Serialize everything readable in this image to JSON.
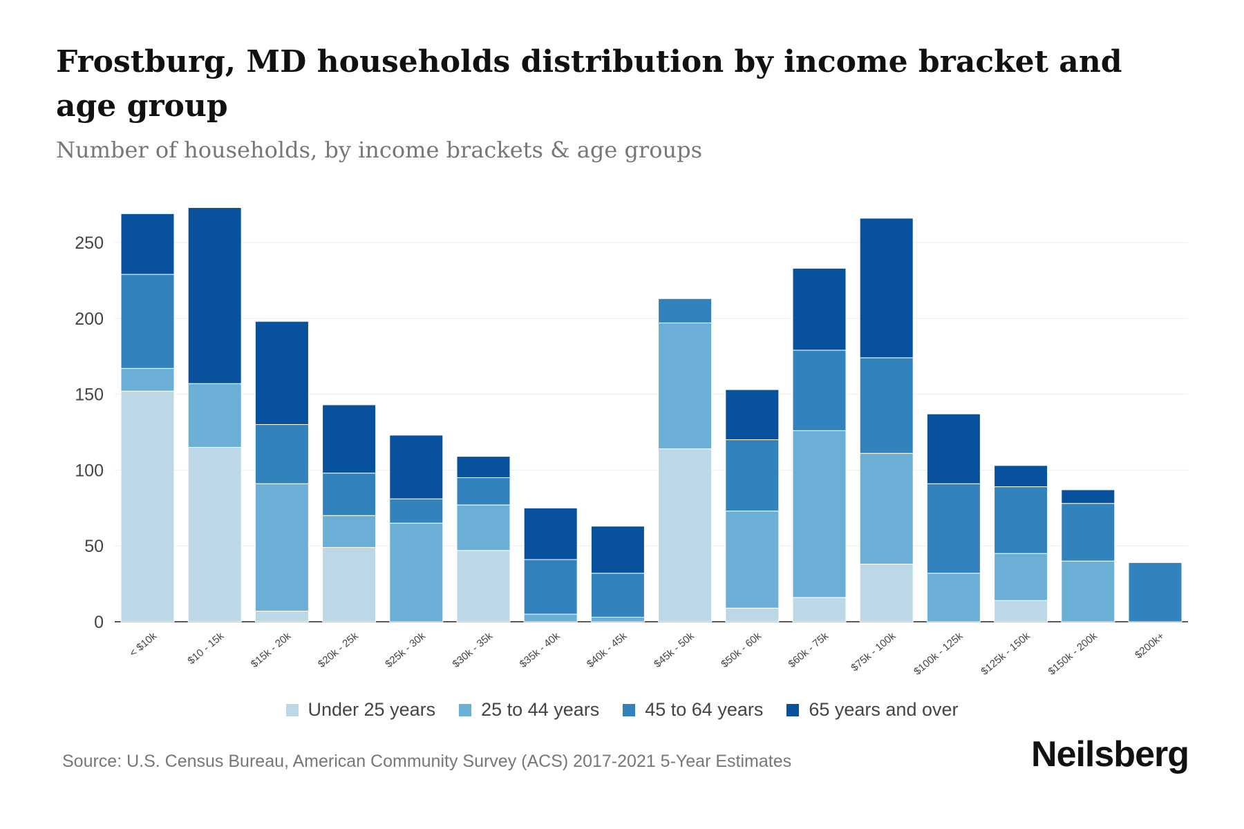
{
  "title": "Frostburg, MD households distribution by income bracket and age group",
  "subtitle": "Number of households, by income brackets & age groups",
  "source": "Source: U.S. Census Bureau, American Community Survey (ACS) 2017-2021 5-Year Estimates",
  "logo": "Neilsberg",
  "chart_data": {
    "type": "bar",
    "stacked": true,
    "title": "Frostburg, MD households distribution by income bracket and age group",
    "xlabel": "",
    "ylabel": "Number of households",
    "ylim": [
      0,
      275
    ],
    "yticks": [
      0,
      50,
      100,
      150,
      200,
      250
    ],
    "grid": true,
    "legend_position": "bottom",
    "categories": [
      "< $10k",
      "$10 - 15k",
      "$15k - 20k",
      "$20k - 25k",
      "$25k - 30k",
      "$30k - 35k",
      "$35k - 40k",
      "$40k - 45k",
      "$45k - 50k",
      "$50k - 60k",
      "$60k - 75k",
      "$75k - 100k",
      "$100k - 125k",
      "$125k - 150k",
      "$150k - 200k",
      "$200k+"
    ],
    "series": [
      {
        "name": "Under 25 years",
        "color": "#bcd8e7",
        "values": [
          152,
          115,
          7,
          49,
          0,
          47,
          0,
          0,
          114,
          9,
          16,
          38,
          0,
          14,
          0,
          0
        ]
      },
      {
        "name": "25 to 44 years",
        "color": "#6baed6",
        "values": [
          15,
          42,
          84,
          21,
          65,
          30,
          5,
          3,
          83,
          64,
          110,
          73,
          32,
          31,
          40,
          0
        ]
      },
      {
        "name": "45 to 64 years",
        "color": "#3182bd",
        "values": [
          62,
          0,
          39,
          28,
          16,
          18,
          36,
          29,
          16,
          47,
          53,
          63,
          59,
          44,
          38,
          39
        ]
      },
      {
        "name": "65 years and over",
        "color": "#08519c",
        "values": [
          40,
          116,
          68,
          45,
          42,
          14,
          34,
          31,
          0,
          33,
          54,
          92,
          46,
          14,
          9,
          0
        ]
      }
    ]
  }
}
